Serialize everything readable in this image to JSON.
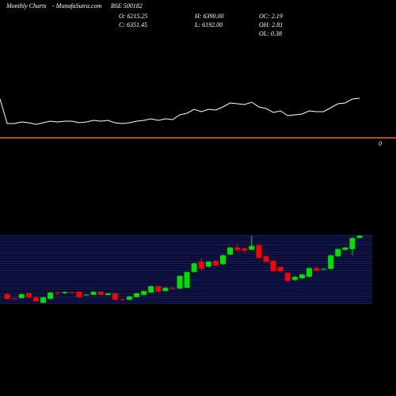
{
  "header": {
    "period": "Monthly Charts",
    "source": "- MunafaSutra.com",
    "symbol": "BSE 500182",
    "open": "O: 6215.25",
    "high": "H: 6390.00",
    "oc": "OC: 2.19",
    "close": "C: 6351.45",
    "low": "L: 6192.00",
    "oh": "OH: 2.81",
    "ol": "OL: 0.38"
  },
  "chart_data": [
    {
      "type": "line",
      "color": "#ffffff",
      "zero_color": "#ff8c00",
      "ylim": [
        0,
        60
      ],
      "yticks": [
        0
      ],
      "values": [
        49,
        18,
        18,
        20,
        19,
        17,
        19,
        21,
        20,
        21,
        21,
        19,
        20,
        22,
        21,
        22,
        19,
        18,
        19,
        21,
        22,
        24,
        22,
        24,
        23,
        29,
        31,
        36,
        33,
        36,
        35,
        39,
        44,
        43,
        42,
        45,
        39,
        37,
        32,
        34,
        28,
        29,
        30,
        34,
        33,
        33,
        38,
        43,
        44,
        49,
        50
      ]
    },
    {
      "type": "candlestick",
      "up_color": "#00e000",
      "down_color": "#ff0000",
      "ylim": [
        2400,
        6400
      ],
      "open": [
        2940,
        2700,
        2710,
        2990,
        2750,
        2430,
        2660,
        3030,
        2990,
        3050,
        3070,
        2870,
        2900,
        3070,
        2890,
        2980,
        2620,
        2610,
        2760,
        2890,
        3030,
        3400,
        3120,
        3300,
        3260,
        3310,
        4230,
        4830,
        4550,
        4880,
        4690,
        5250,
        5660,
        5610,
        5520,
        5800,
        5150,
        4880,
        4510,
        4180,
        3770,
        3860,
        3950,
        4460,
        4370,
        4410,
        5150,
        5520,
        5570,
        6215.25
      ],
      "high": [
        2980,
        2730,
        2980,
        3020,
        2780,
        2780,
        3060,
        3080,
        3090,
        3090,
        3100,
        2950,
        3100,
        3110,
        3000,
        3000,
        2700,
        2830,
        3010,
        3150,
        3430,
        3430,
        3350,
        3380,
        4030,
        4260,
        4780,
        5020,
        4870,
        4900,
        5240,
        5700,
        5850,
        5650,
        6350,
        5830,
        5190,
        4920,
        4540,
        4200,
        3990,
        4130,
        4490,
        4550,
        4440,
        5240,
        5610,
        5700,
        6250,
        6390
      ],
      "low": [
        2620,
        2640,
        2680,
        2720,
        2490,
        2410,
        2630,
        2890,
        2950,
        3000,
        2730,
        2840,
        2870,
        2880,
        2860,
        2590,
        2560,
        2590,
        2740,
        2870,
        3000,
        3050,
        3100,
        3200,
        3240,
        3290,
        4200,
        4320,
        4500,
        4560,
        4650,
        5220,
        5430,
        5330,
        5480,
        5020,
        4790,
        4240,
        4230,
        3690,
        3700,
        3830,
        3920,
        4290,
        4340,
        4380,
        5110,
        5480,
        5200,
        6192
      ],
      "close": [
        2660,
        2670,
        2940,
        2750,
        2520,
        2750,
        3030,
        2990,
        3060,
        3030,
        2760,
        2910,
        3070,
        2900,
        2980,
        2620,
        2580,
        2800,
        2990,
        3120,
        3400,
        3080,
        3310,
        3260,
        4000,
        4230,
        4740,
        4420,
        4830,
        4600,
        5200,
        5660,
        5520,
        5480,
        5750,
        5060,
        4830,
        4280,
        4280,
        3720,
        3950,
        4090,
        4460,
        4320,
        4410,
        5200,
        5570,
        5660,
        6215,
        6351.45
      ]
    }
  ]
}
